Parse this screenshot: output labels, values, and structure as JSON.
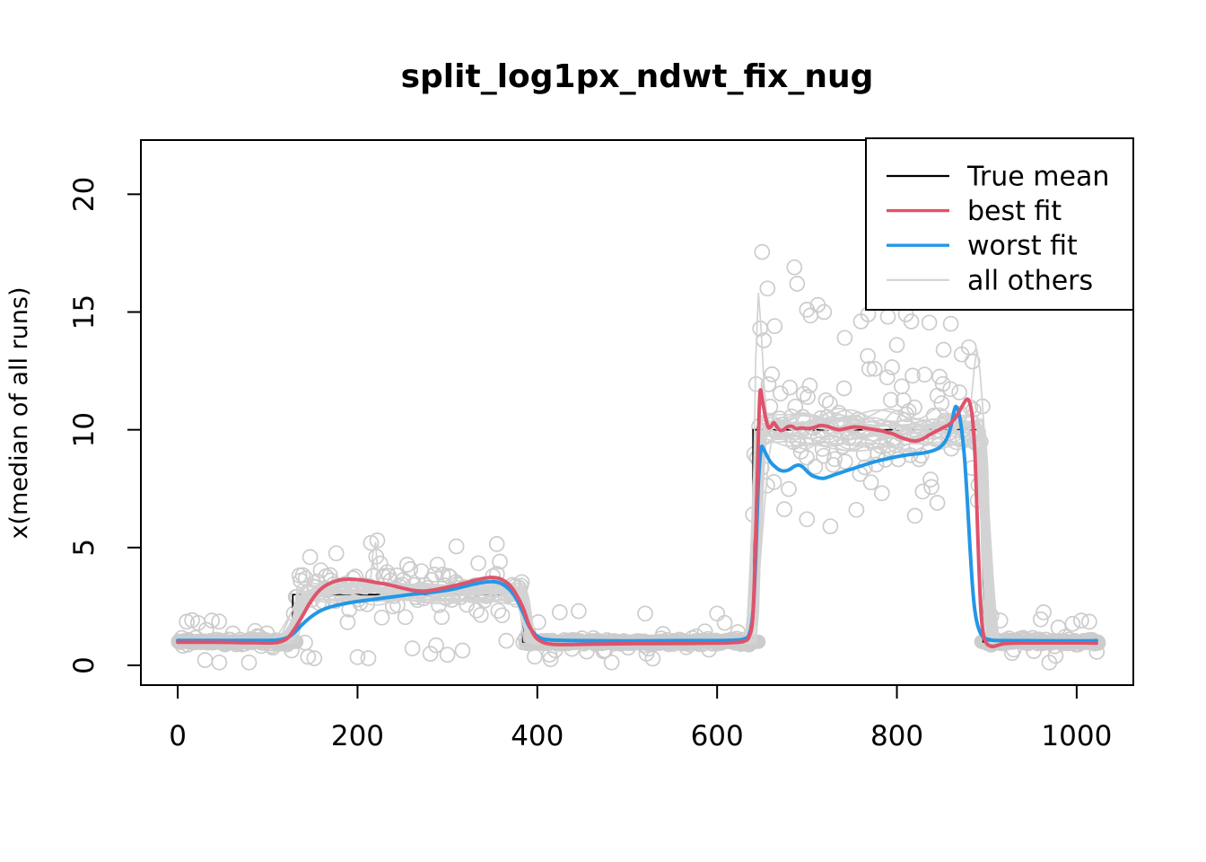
{
  "title": "split_log1px_ndwt_fix_nug",
  "y_axis": {
    "label": "x(median of all runs)",
    "tick_labels": [
      "0",
      "5",
      "10",
      "15",
      "20"
    ],
    "tick_values": [
      0,
      5,
      10,
      15,
      20
    ]
  },
  "x_axis": {
    "label": "",
    "tick_labels": [
      "0",
      "200",
      "400",
      "600",
      "800",
      "1000"
    ],
    "tick_values": [
      0,
      200,
      400,
      600,
      800,
      1000
    ]
  },
  "legend": {
    "entries": [
      {
        "label": "True mean",
        "color": "#000000",
        "lw": 2.2
      },
      {
        "label": "best fit",
        "color": "#DF536B",
        "lw": 3.4
      },
      {
        "label": "worst fit",
        "color": "#2297E6",
        "lw": 3.4
      },
      {
        "label": "all others",
        "color": "#D3D3D3",
        "lw": 2.2
      }
    ]
  },
  "colors": {
    "true_mean": "#000000",
    "best_fit": "#DF536B",
    "worst_fit": "#2297E6",
    "others": "#D3D3D3",
    "scatter": "#CCCCCC",
    "axis": "#000000",
    "background": "#FFFFFF"
  },
  "chart_data": {
    "type": "line",
    "title": "split_log1px_ndwt_fix_nug",
    "xlabel": "",
    "ylabel": "x(median of all runs)",
    "xlim": [
      -41,
      1063
    ],
    "ylim": [
      -0.84,
      22.3
    ],
    "x_data_range": [
      1,
      1024
    ],
    "grid": false,
    "legend_position": "topright",
    "true_mean_step": {
      "name": "True mean",
      "color": "#000000",
      "edges": [
        128,
        384,
        640,
        896
      ],
      "values": [
        1,
        3,
        1,
        10,
        1
      ]
    },
    "best_fit": {
      "name": "best fit",
      "color": "#DF536B",
      "points": [
        [
          0,
          0.98
        ],
        [
          40,
          0.98
        ],
        [
          80,
          0.96
        ],
        [
          100,
          0.95
        ],
        [
          112,
          0.98
        ],
        [
          122,
          1.15
        ],
        [
          130,
          1.55
        ],
        [
          138,
          2.05
        ],
        [
          147,
          2.65
        ],
        [
          156,
          3.12
        ],
        [
          166,
          3.42
        ],
        [
          178,
          3.6
        ],
        [
          190,
          3.66
        ],
        [
          205,
          3.62
        ],
        [
          220,
          3.52
        ],
        [
          235,
          3.42
        ],
        [
          250,
          3.28
        ],
        [
          262,
          3.18
        ],
        [
          275,
          3.15
        ],
        [
          290,
          3.24
        ],
        [
          305,
          3.36
        ],
        [
          320,
          3.5
        ],
        [
          335,
          3.65
        ],
        [
          348,
          3.73
        ],
        [
          358,
          3.68
        ],
        [
          368,
          3.45
        ],
        [
          376,
          3.05
        ],
        [
          384,
          2.45
        ],
        [
          391,
          1.7
        ],
        [
          398,
          1.2
        ],
        [
          406,
          0.98
        ],
        [
          416,
          0.9
        ],
        [
          430,
          0.88
        ],
        [
          460,
          0.9
        ],
        [
          510,
          0.92
        ],
        [
          560,
          0.93
        ],
        [
          600,
          0.94
        ],
        [
          620,
          0.97
        ],
        [
          630,
          1.02
        ],
        [
          636,
          1.25
        ],
        [
          640,
          2.2
        ],
        [
          643,
          5.5
        ],
        [
          646,
          9.8
        ],
        [
          648,
          11.65
        ],
        [
          651,
          11.1
        ],
        [
          654,
          10.5
        ],
        [
          657,
          10.1
        ],
        [
          660,
          10.15
        ],
        [
          663,
          10.3
        ],
        [
          666,
          10.15
        ],
        [
          670,
          9.98
        ],
        [
          674,
          10.0
        ],
        [
          678,
          10.12
        ],
        [
          683,
          10.15
        ],
        [
          688,
          10.05
        ],
        [
          694,
          10.08
        ],
        [
          701,
          10.05
        ],
        [
          708,
          10.1
        ],
        [
          715,
          10.18
        ],
        [
          722,
          10.15
        ],
        [
          729,
          10.06
        ],
        [
          736,
          10.0
        ],
        [
          744,
          10.06
        ],
        [
          752,
          10.12
        ],
        [
          760,
          10.1
        ],
        [
          768,
          10.05
        ],
        [
          776,
          10.0
        ],
        [
          784,
          9.95
        ],
        [
          790,
          9.88
        ],
        [
          796,
          9.82
        ],
        [
          804,
          9.68
        ],
        [
          812,
          9.58
        ],
        [
          820,
          9.52
        ],
        [
          828,
          9.6
        ],
        [
          836,
          9.78
        ],
        [
          844,
          9.95
        ],
        [
          852,
          10.1
        ],
        [
          858,
          10.22
        ],
        [
          864,
          10.45
        ],
        [
          869,
          10.75
        ],
        [
          874,
          11.1
        ],
        [
          878,
          11.3
        ],
        [
          881,
          11.15
        ],
        [
          884,
          10.5
        ],
        [
          887,
          8.8
        ],
        [
          890,
          5.5
        ],
        [
          893,
          2.6
        ],
        [
          896,
          1.35
        ],
        [
          900,
          0.92
        ],
        [
          906,
          0.8
        ],
        [
          912,
          0.85
        ],
        [
          920,
          0.92
        ],
        [
          940,
          0.95
        ],
        [
          970,
          0.95
        ],
        [
          1000,
          0.95
        ],
        [
          1022,
          0.94
        ]
      ]
    },
    "worst_fit": {
      "name": "worst fit",
      "color": "#2297E6",
      "points": [
        [
          0,
          1.06
        ],
        [
          60,
          1.06
        ],
        [
          100,
          1.06
        ],
        [
          112,
          1.08
        ],
        [
          122,
          1.18
        ],
        [
          130,
          1.4
        ],
        [
          139,
          1.75
        ],
        [
          148,
          2.05
        ],
        [
          158,
          2.3
        ],
        [
          170,
          2.48
        ],
        [
          183,
          2.6
        ],
        [
          198,
          2.7
        ],
        [
          214,
          2.78
        ],
        [
          230,
          2.86
        ],
        [
          246,
          2.94
        ],
        [
          262,
          3.02
        ],
        [
          278,
          3.08
        ],
        [
          293,
          3.15
        ],
        [
          307,
          3.24
        ],
        [
          320,
          3.36
        ],
        [
          331,
          3.46
        ],
        [
          341,
          3.53
        ],
        [
          351,
          3.55
        ],
        [
          360,
          3.47
        ],
        [
          369,
          3.22
        ],
        [
          377,
          2.8
        ],
        [
          384,
          2.25
        ],
        [
          391,
          1.65
        ],
        [
          398,
          1.3
        ],
        [
          406,
          1.12
        ],
        [
          418,
          1.07
        ],
        [
          440,
          1.05
        ],
        [
          500,
          1.04
        ],
        [
          560,
          1.05
        ],
        [
          600,
          1.05
        ],
        [
          620,
          1.07
        ],
        [
          630,
          1.12
        ],
        [
          636,
          1.35
        ],
        [
          640,
          2.3
        ],
        [
          643,
          4.6
        ],
        [
          646,
          7.8
        ],
        [
          649,
          9.2
        ],
        [
          652,
          9.15
        ],
        [
          656,
          8.85
        ],
        [
          660,
          8.6
        ],
        [
          664,
          8.45
        ],
        [
          669,
          8.3
        ],
        [
          674,
          8.25
        ],
        [
          680,
          8.3
        ],
        [
          686,
          8.45
        ],
        [
          691,
          8.5
        ],
        [
          696,
          8.4
        ],
        [
          701,
          8.2
        ],
        [
          706,
          8.05
        ],
        [
          712,
          7.97
        ],
        [
          718,
          7.94
        ],
        [
          724,
          8.0
        ],
        [
          731,
          8.1
        ],
        [
          739,
          8.2
        ],
        [
          747,
          8.3
        ],
        [
          755,
          8.4
        ],
        [
          763,
          8.5
        ],
        [
          771,
          8.6
        ],
        [
          779,
          8.68
        ],
        [
          787,
          8.75
        ],
        [
          795,
          8.82
        ],
        [
          803,
          8.88
        ],
        [
          811,
          8.93
        ],
        [
          819,
          8.97
        ],
        [
          827,
          9.0
        ],
        [
          835,
          9.06
        ],
        [
          842,
          9.14
        ],
        [
          848,
          9.26
        ],
        [
          853,
          9.46
        ],
        [
          857,
          9.75
        ],
        [
          861,
          10.3
        ],
        [
          864,
          10.85
        ],
        [
          866,
          10.98
        ],
        [
          869,
          10.7
        ],
        [
          872,
          10.0
        ],
        [
          875,
          8.9
        ],
        [
          878,
          7.2
        ],
        [
          881,
          5.2
        ],
        [
          884,
          3.4
        ],
        [
          887,
          2.25
        ],
        [
          891,
          1.55
        ],
        [
          896,
          1.2
        ],
        [
          904,
          1.08
        ],
        [
          920,
          1.05
        ],
        [
          1000,
          1.04
        ],
        [
          1022,
          1.05
        ]
      ]
    },
    "others": {
      "name": "all others",
      "color": "#D3D3D3",
      "count": 26,
      "seed": 11,
      "line_width": 1.7,
      "baseline_level": 1.0,
      "bump_level": [
        2.7,
        3.45
      ],
      "plateau_level": [
        9.35,
        10.75
      ],
      "edge_delay": [
        -2,
        10
      ],
      "edge_width": [
        6,
        26
      ],
      "bump_early_rise_width": [
        12,
        60
      ],
      "wiggle_amp": [
        0.1,
        0.45
      ],
      "spikes": [
        {
          "line": 0,
          "x": 646,
          "peak": 15.8,
          "width": 4
        },
        {
          "line": 1,
          "x": 889,
          "peak": 13.4,
          "width": 3.5
        },
        {
          "line": 2,
          "x": 219,
          "peak": 5.4,
          "width": 2.5
        }
      ]
    },
    "scatter": {
      "seed": 5,
      "step": 2.0,
      "baseline_step": 1.6,
      "radius": 8,
      "color": "#CCCCCC",
      "stroke_width": 1.7,
      "baseline": {
        "tight_sd": 0.06,
        "tight_frac": 0.8,
        "wide_sd": 0.5,
        "clip": [
          0.12,
          2.25
        ]
      },
      "bump": {
        "mean": 3.2,
        "sd": 0.6,
        "clip": [
          0.4,
          5.25
        ],
        "low_frac": 0.04,
        "low_mean": 0.6,
        "low_sd": 0.25
      },
      "plateau": {
        "mean": 10.15,
        "sd": 1.3,
        "clip": [
          5.5,
          15.5
        ]
      },
      "band_segments": [
        [
          1,
          132
        ],
        [
          388,
          646
        ],
        [
          894,
          1024
        ]
      ],
      "outliers": [
        [
          648,
          14.3
        ],
        [
          650,
          17.55
        ],
        [
          652,
          13.8
        ],
        [
          656,
          16.0
        ],
        [
          664,
          14.4
        ],
        [
          686,
          16.9
        ],
        [
          689,
          16.2
        ],
        [
          700,
          15.1
        ],
        [
          704,
          14.85
        ],
        [
          712,
          15.3
        ],
        [
          719,
          15.0
        ],
        [
          742,
          13.9
        ],
        [
          760,
          14.6
        ],
        [
          768,
          14.9
        ],
        [
          790,
          14.8
        ],
        [
          800,
          13.6
        ],
        [
          810,
          14.9
        ],
        [
          816,
          14.6
        ],
        [
          836,
          14.55
        ],
        [
          852,
          13.4
        ],
        [
          860,
          14.5
        ],
        [
          872,
          13.2
        ],
        [
          880,
          13.5
        ],
        [
          884,
          12.9
        ],
        [
          905,
          2.1
        ],
        [
          915,
          1.9
        ],
        [
          10,
          1.85
        ],
        [
          16,
          1.92
        ],
        [
          38,
          1.9
        ],
        [
          46,
          1.86
        ],
        [
          300,
          0.45
        ],
        [
          200,
          0.35
        ],
        [
          212,
          0.3
        ],
        [
          145,
          0.36
        ],
        [
          152,
          0.3
        ],
        [
          640,
          6.4
        ],
        [
          700,
          6.2
        ],
        [
          726,
          5.9
        ],
        [
          755,
          6.6
        ],
        [
          820,
          6.35
        ],
        [
          845,
          6.9
        ],
        [
          890,
          7.0
        ],
        [
          425,
          2.25
        ],
        [
          446,
          2.3
        ],
        [
          520,
          2.2
        ],
        [
          600,
          2.2
        ],
        [
          215,
          5.2
        ],
        [
          222,
          5.3
        ],
        [
          310,
          5.05
        ],
        [
          355,
          5.15
        ],
        [
          960,
          1.95
        ],
        [
          1005,
          1.9
        ],
        [
          1014,
          1.85
        ]
      ]
    }
  }
}
